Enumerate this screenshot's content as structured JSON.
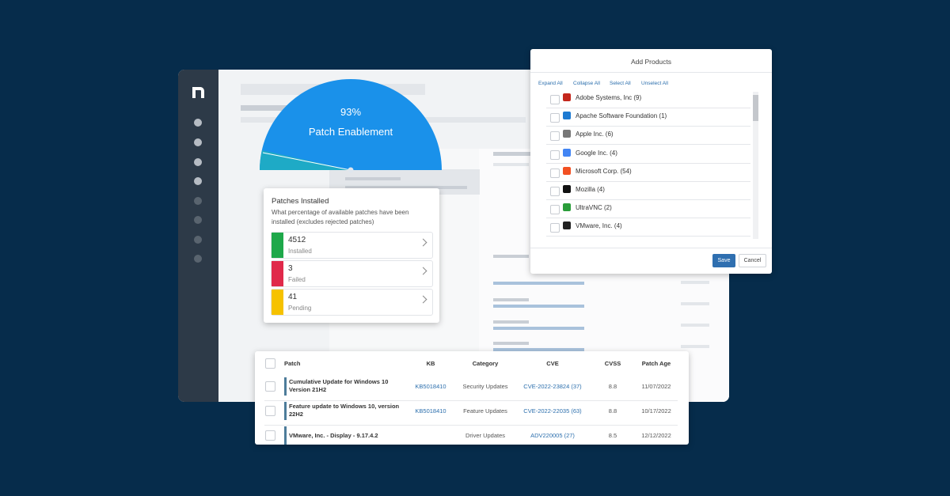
{
  "gauge": {
    "value": "93%",
    "label": "Patch Enablement"
  },
  "patches_card": {
    "title": "Patches Installed",
    "description": "What percentage of available patches have been installed (excludes rejected patches)",
    "rows": [
      {
        "count": 4512,
        "status": "Installed"
      },
      {
        "count": 3,
        "status": "Failed"
      },
      {
        "count": 41,
        "status": "Pending"
      }
    ]
  },
  "add_products": {
    "title": "Add Products",
    "actions": [
      "Expand All",
      "Collapse All",
      "Select All",
      "Unselect All"
    ],
    "items": [
      "Adobe Systems, Inc (9)",
      "Apache Software Foundation (1)",
      "Apple Inc. (6)",
      "Google Inc. (4)",
      "Microsoft Corp. (54)",
      "Mozilla (4)",
      "UltraVNC (2)",
      "VMware, Inc. (4)"
    ],
    "buttons": [
      "Save",
      "Cancel"
    ]
  },
  "table": {
    "headers": [
      "Patch",
      "KB",
      "Category",
      "CVE",
      "CVSS",
      "Patch Age"
    ],
    "rows": [
      [
        "Cumulative Update for Windows 10 Version 21H2",
        "KB5018410",
        "Security Updates",
        "CVE-2022-23824 (37)",
        "8.8",
        "11/07/2022"
      ],
      [
        "Feature update to Windows 10, version 22H2",
        "KB5018410",
        "Feature Updates",
        "CVE-2022-22035 (63)",
        "8.8",
        "10/17/2022"
      ],
      [
        "VMware, Inc. - Display - 9.17.4.2",
        null,
        "Driver Updates",
        "ADV220005 (27)",
        "8.5",
        "12/12/2022"
      ]
    ]
  }
}
